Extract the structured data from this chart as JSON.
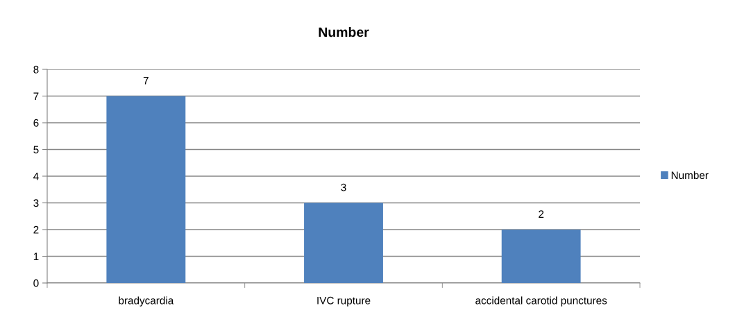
{
  "chart_data": {
    "type": "bar",
    "title": "Number",
    "categories": [
      "bradycardia",
      "IVC rupture",
      "accidental carotid punctures"
    ],
    "series": [
      {
        "name": "Number",
        "color": "#4f81bd",
        "values": [
          7,
          3,
          2
        ]
      }
    ],
    "ylim": [
      0,
      8
    ],
    "yticks": [
      0,
      1,
      2,
      3,
      4,
      5,
      6,
      7,
      8
    ],
    "grid": "y",
    "legend": "right",
    "data_labels": true
  }
}
